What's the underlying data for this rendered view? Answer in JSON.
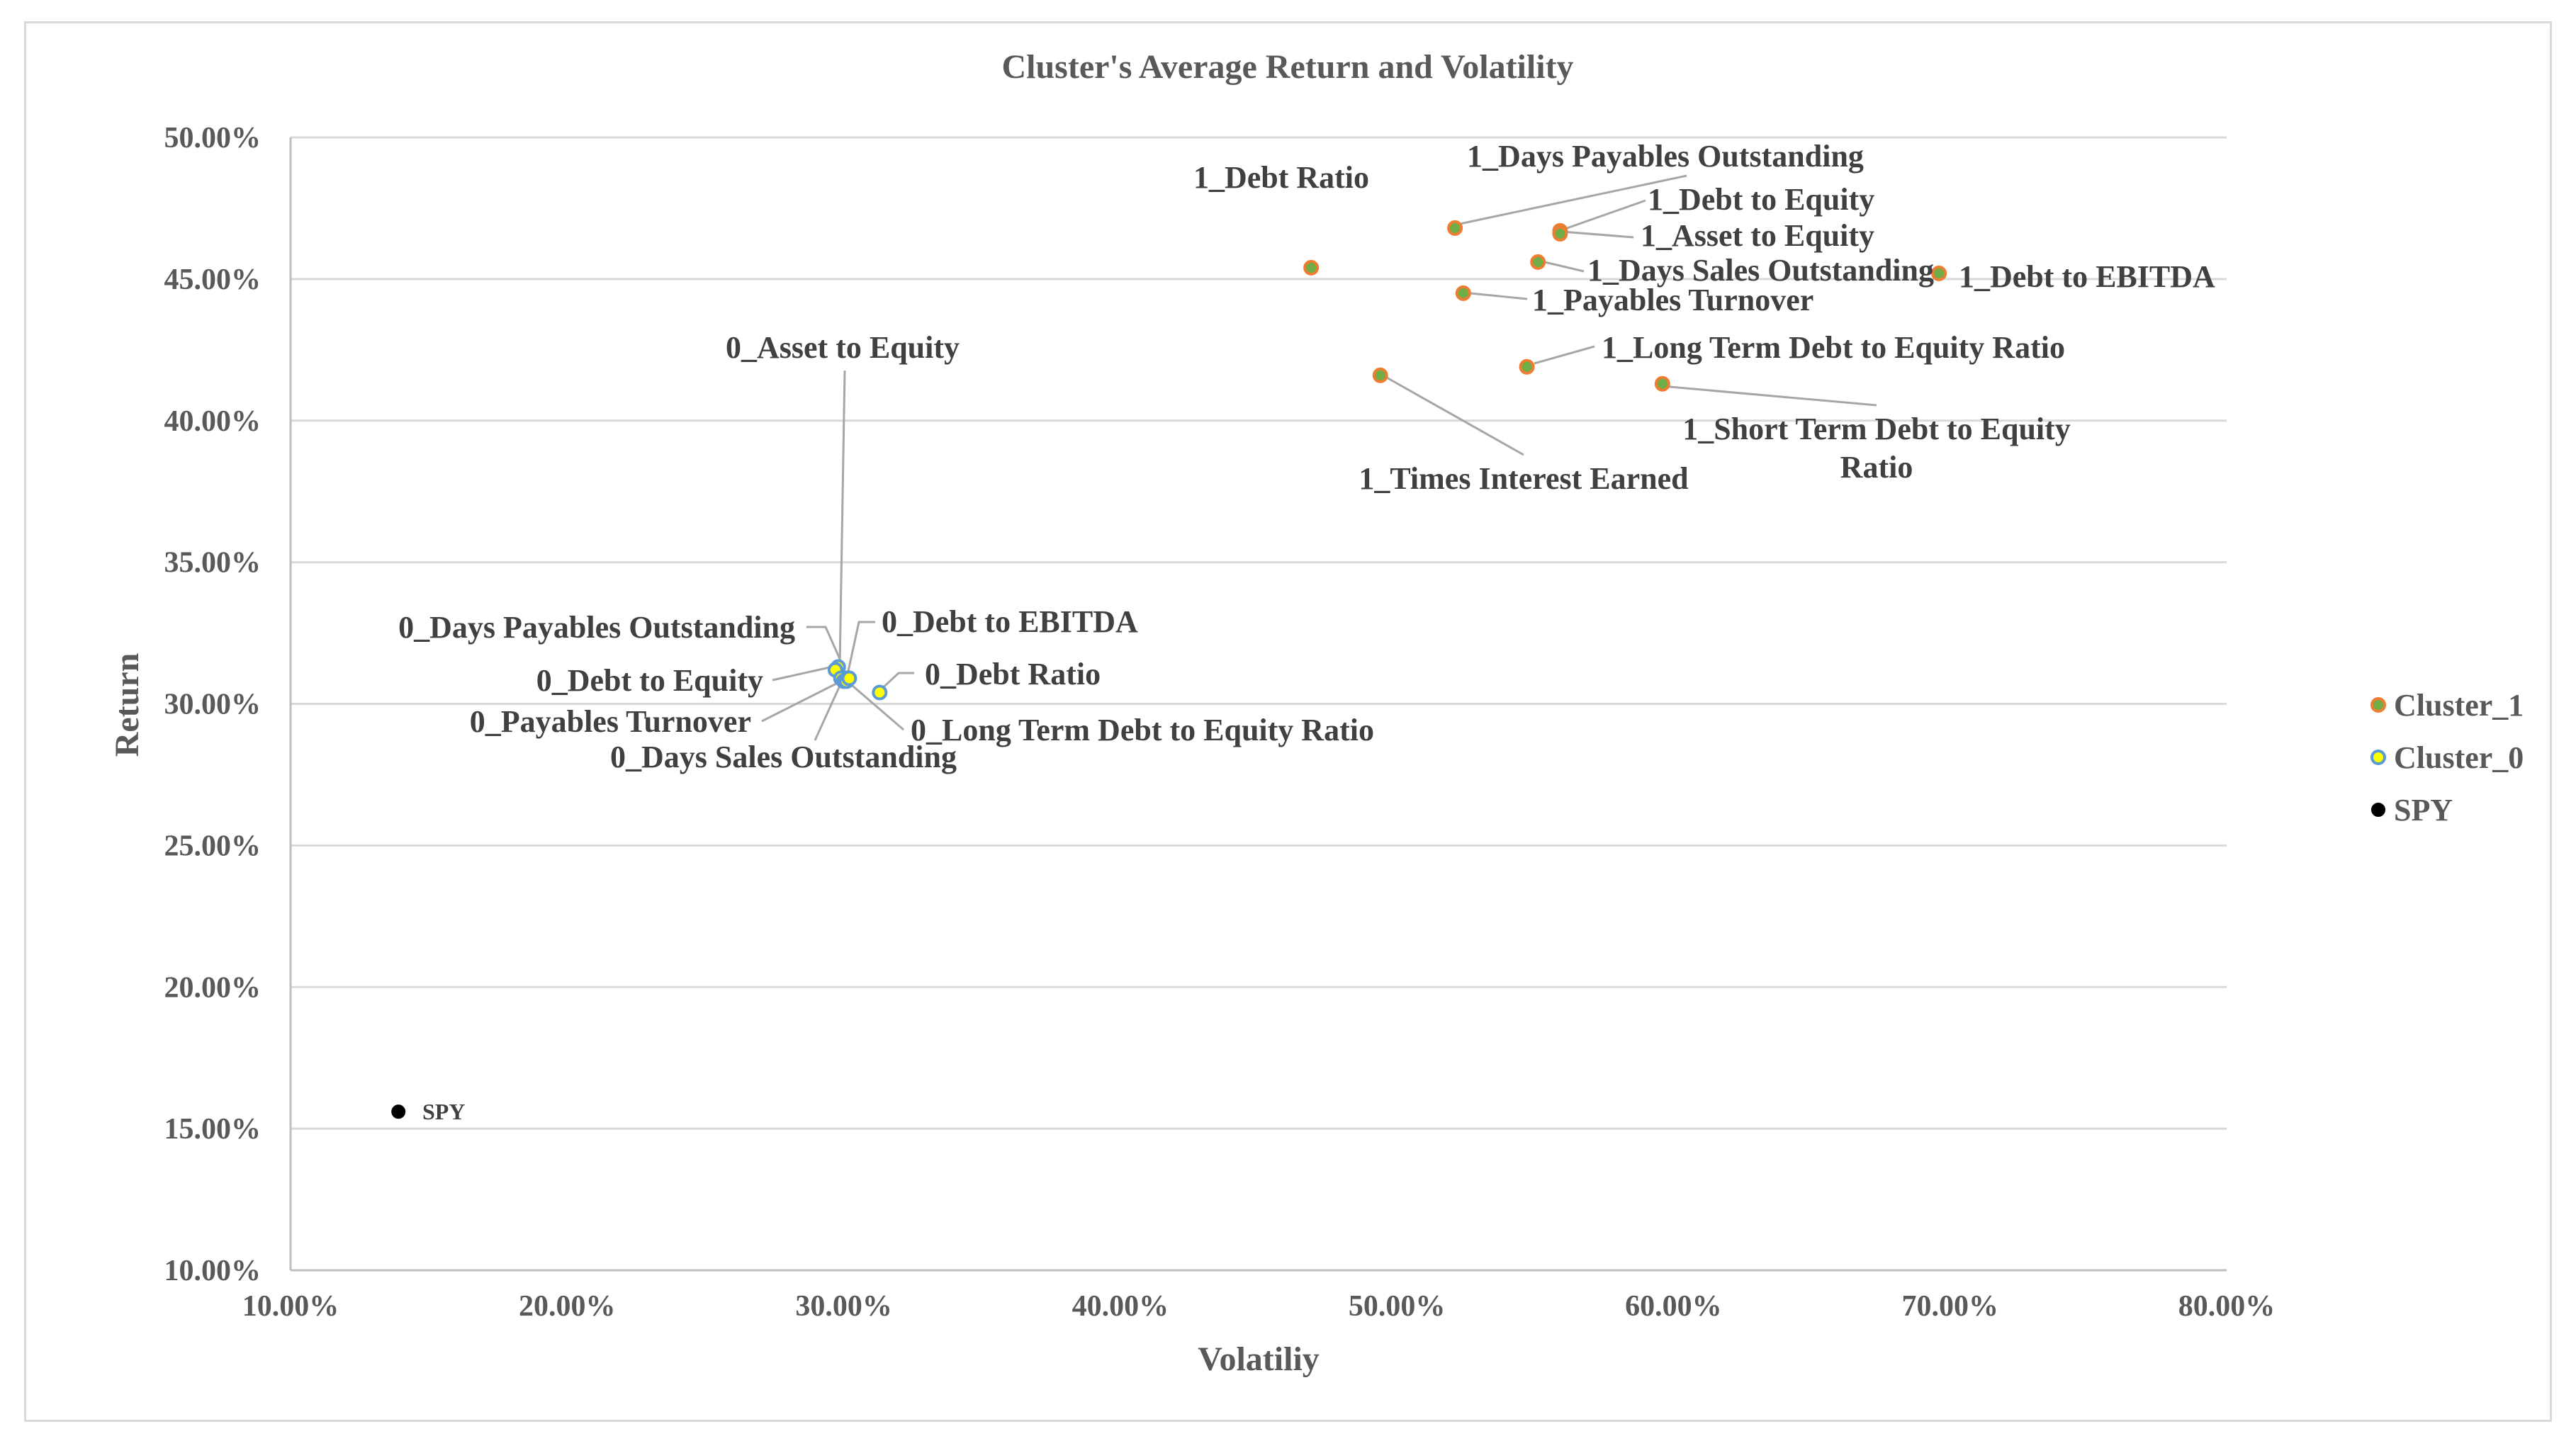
{
  "chart_data": {
    "type": "scatter",
    "title": "Cluster's Average Return and Volatility",
    "xlabel": "Volatiliy",
    "ylabel": "Return",
    "xlim": [
      0.1,
      0.8
    ],
    "ylim": [
      0.1,
      0.5
    ],
    "x_ticks": [
      "10.00%",
      "20.00%",
      "30.00%",
      "40.00%",
      "50.00%",
      "60.00%",
      "70.00%",
      "80.00%"
    ],
    "y_ticks": [
      "10.00%",
      "15.00%",
      "20.00%",
      "25.00%",
      "30.00%",
      "35.00%",
      "40.00%",
      "45.00%",
      "50.00%"
    ],
    "grid": "horizontal",
    "legend_position": "right",
    "series": [
      {
        "name": "Cluster_1",
        "color": "#70ad47",
        "edge_color": "#ed7d31",
        "points": [
          {
            "label": "1_Debt Ratio",
            "x": 0.469,
            "y": 0.454
          },
          {
            "label": "1_Days Payables Outstanding",
            "x": 0.521,
            "y": 0.468
          },
          {
            "label": "1_Debt to Equity",
            "x": 0.559,
            "y": 0.467
          },
          {
            "label": "1_Asset to Equity",
            "x": 0.559,
            "y": 0.466
          },
          {
            "label": "1_Days Sales Outstanding",
            "x": 0.551,
            "y": 0.456
          },
          {
            "label": "1_Debt to EBITDA",
            "x": 0.696,
            "y": 0.452
          },
          {
            "label": "1_Payables Turnover",
            "x": 0.524,
            "y": 0.445
          },
          {
            "label": "1_Long Term Debt to Equity Ratio",
            "x": 0.547,
            "y": 0.419
          },
          {
            "label": "1_Times Interest Earned",
            "x": 0.494,
            "y": 0.416
          },
          {
            "label": "1_Short Term Debt to Equity Ratio",
            "x": 0.596,
            "y": 0.413
          }
        ]
      },
      {
        "name": "Cluster_0",
        "color": "#ffff00",
        "edge_color": "#5b9bd5",
        "points": [
          {
            "label": "0_Asset to Equity",
            "x": 0.298,
            "y": 0.313
          },
          {
            "label": "0_Days Payables Outstanding",
            "x": 0.297,
            "y": 0.312
          },
          {
            "label": "0_Debt to EBITDA",
            "x": 0.301,
            "y": 0.309
          },
          {
            "label": "0_Debt to Equity",
            "x": 0.299,
            "y": 0.309
          },
          {
            "label": "0_Debt Ratio",
            "x": 0.313,
            "y": 0.304
          },
          {
            "label": "0_Payables Turnover",
            "x": 0.3,
            "y": 0.308
          },
          {
            "label": "0_Days Sales Outstanding",
            "x": 0.301,
            "y": 0.308
          },
          {
            "label": "0_Long Term Debt to Equity Ratio",
            "x": 0.302,
            "y": 0.309
          }
        ]
      },
      {
        "name": "SPY",
        "color": "#000000",
        "edge_color": "#000000",
        "points": [
          {
            "label": "SPY",
            "x": 0.139,
            "y": 0.156
          }
        ]
      }
    ]
  }
}
